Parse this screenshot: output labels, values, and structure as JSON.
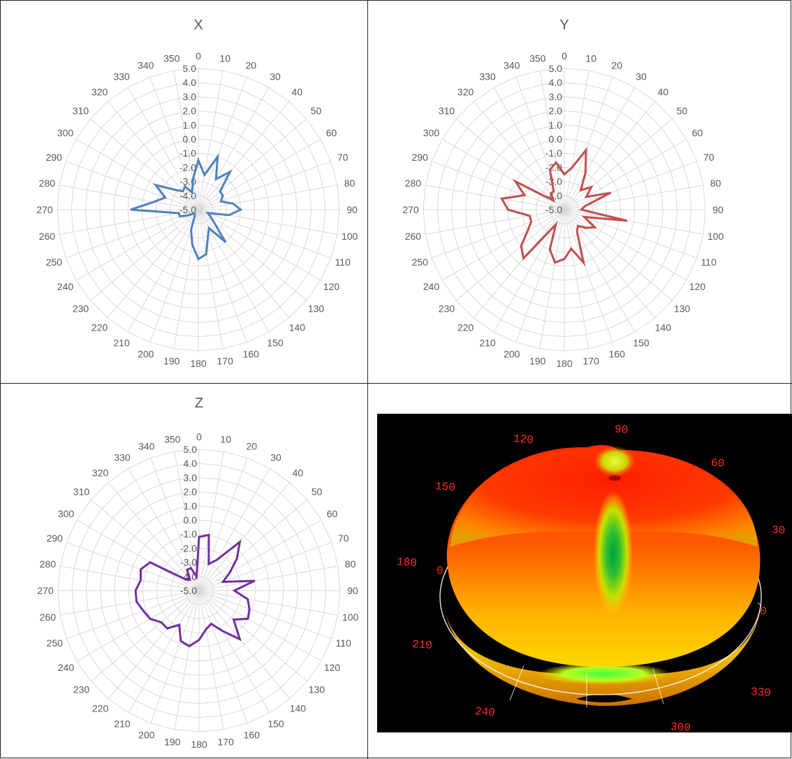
{
  "chart_data": [
    {
      "type": "radar",
      "title": "X",
      "color": "#4F81BD",
      "angles": [
        0,
        10,
        20,
        30,
        40,
        50,
        60,
        70,
        80,
        90,
        100,
        110,
        120,
        130,
        140,
        150,
        160,
        170,
        180,
        190,
        200,
        210,
        220,
        230,
        240,
        250,
        260,
        270,
        280,
        290,
        300,
        310,
        320,
        330,
        340,
        350
      ],
      "radial_ticks": [
        "-5.0",
        "-4.0",
        "-3.0",
        "-2.0",
        "-1.0",
        "0.0",
        "1.0",
        "2.0",
        "3.0",
        "4.0",
        "5.0"
      ],
      "rlim": [
        -5,
        5
      ],
      "values": [
        -1.5,
        -2.5,
        -1.0,
        -2.5,
        -1.5,
        -3.0,
        -3.0,
        -3.3,
        -2.5,
        -2.0,
        -2.8,
        -4.3,
        -4.0,
        -3.5,
        -2.0,
        -3.5,
        -3.0,
        -1.8,
        -1.5,
        -2.5,
        -3.5,
        -4.5,
        -4.6,
        -4.6,
        -4.2,
        -3.6,
        -3.6,
        -0.2,
        -1.8,
        -2.5,
        -1.5,
        -2.8,
        -3.3,
        -3.1,
        -3.7,
        -2.8
      ]
    },
    {
      "type": "radar",
      "title": "Y",
      "color": "#C0504D",
      "angles": [
        0,
        10,
        20,
        30,
        40,
        50,
        60,
        70,
        80,
        90,
        100,
        110,
        120,
        130,
        140,
        150,
        160,
        170,
        180,
        190,
        200,
        210,
        220,
        230,
        240,
        250,
        260,
        270,
        280,
        290,
        300,
        310,
        320,
        330,
        340,
        350
      ],
      "radial_ticks": [
        "-5.0",
        "-4.0",
        "-3.0",
        "-2.0",
        "-1.0",
        "0.0",
        "1.0",
        "2.0",
        "3.0",
        "4.0",
        "5.0"
      ],
      "rlim": [
        -5,
        5
      ],
      "values": [
        -2.5,
        -2.0,
        -0.5,
        -2.0,
        -3.2,
        -2.5,
        -3.2,
        -1.5,
        -3.5,
        -3.8,
        -0.5,
        -3.5,
        -2.5,
        -3.0,
        -3.5,
        -3.2,
        -1.0,
        -2.2,
        -1.5,
        -1.2,
        -2.0,
        -3.8,
        -0.5,
        -1.0,
        -2.0,
        -2.5,
        -2.5,
        -1.0,
        -0.5,
        -2.0,
        -1.0,
        -4.0,
        -3.5,
        -3.5,
        -2.0,
        -1.6
      ]
    },
    {
      "type": "radar",
      "title": "Z",
      "color": "#7030A0",
      "angles": [
        0,
        10,
        20,
        30,
        40,
        50,
        60,
        70,
        80,
        90,
        100,
        110,
        120,
        130,
        140,
        150,
        160,
        170,
        180,
        190,
        200,
        210,
        220,
        230,
        240,
        250,
        260,
        270,
        280,
        290,
        300,
        310,
        320,
        330,
        340,
        350
      ],
      "radial_ticks": [
        "-5.0",
        "-4.0",
        "-3.0",
        "-2.0",
        "-1.0",
        "0.0",
        "1.0",
        "2.0",
        "3.0",
        "4.0",
        "5.0"
      ],
      "rlim": [
        -5,
        5
      ],
      "values": [
        -1.2,
        -1.0,
        -3.0,
        -2.5,
        -0.5,
        -1.5,
        -2.5,
        -3.2,
        -1.0,
        -2.5,
        -1.5,
        -1.2,
        -1.0,
        -1.8,
        -0.5,
        -1.7,
        -2.5,
        -2.2,
        -1.5,
        -1.0,
        -1.2,
        -2.2,
        -1.5,
        -1.5,
        -1.0,
        -0.8,
        -0.5,
        -0.5,
        -0.8,
        -0.6,
        -1.0,
        -3.8,
        -4.0,
        -3.3,
        -3.3,
        -4.0
      ]
    }
  ],
  "pattern_3d": {
    "background_color": "#000000",
    "label_color": "#ff2a2a",
    "angle_labels": [
      "120",
      "90",
      "60",
      "150",
      "30",
      "180",
      "0",
      "0",
      "210",
      "330",
      "240",
      "300"
    ]
  }
}
